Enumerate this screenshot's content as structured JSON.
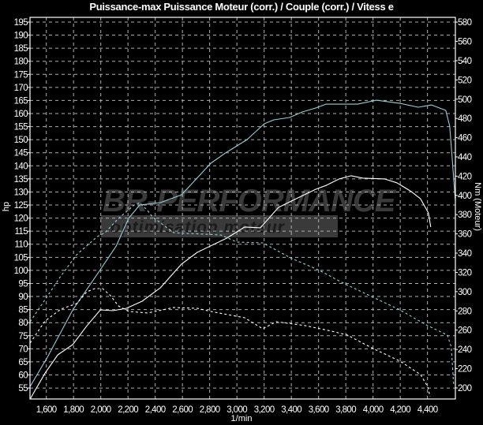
{
  "chart_data": {
    "type": "line",
    "title": "Puissance-max Puissance Moteur (corr.) / Couple (corr.) / Vitess e",
    "xlabel": "1/min",
    "ylabel_left": "hp",
    "ylabel_right": "Nm (Moteur)",
    "xlim": [
      1480,
      4605
    ],
    "ylim_left": [
      50.8,
      196.8
    ],
    "ylim_right": [
      188.5,
      585
    ],
    "grid": true,
    "x_ticks": [
      1600,
      1800,
      2000,
      2200,
      2400,
      2600,
      2800,
      3000,
      3200,
      3400,
      3600,
      3800,
      4000,
      4200,
      4400
    ],
    "x_tick_labels": [
      "1,600",
      "1,800",
      "2,000",
      "2,200",
      "2,400",
      "2,600",
      "2,800",
      "3,000",
      "3,200",
      "3,400",
      "3,600",
      "3,800",
      "4,000",
      "4,200",
      "4,400"
    ],
    "y_left_ticks": [
      55,
      60,
      65,
      70,
      75,
      80,
      85,
      90,
      95,
      100,
      105,
      110,
      115,
      120,
      125,
      130,
      135,
      140,
      145,
      150,
      155,
      160,
      165,
      170,
      175,
      180,
      185,
      190,
      195
    ],
    "y_right_ticks": [
      200,
      220,
      240,
      260,
      280,
      300,
      320,
      340,
      360,
      380,
      400,
      420,
      440,
      460,
      480,
      500,
      520,
      540,
      560,
      580
    ],
    "series": [
      {
        "axis": "left",
        "color": "#8fd3d8",
        "dash": false,
        "x": [
          1481,
          1608,
          1794,
          1997,
          2113,
          2205,
          2286,
          2437,
          2593,
          2808,
          2924,
          3074,
          3202,
          3271,
          3387,
          3480,
          3578,
          3654,
          3886,
          4025,
          4198,
          4332,
          4430,
          4534,
          4563,
          4581,
          4604
        ],
        "y": [
          55.6,
          66.8,
          84.9,
          100.3,
          109.3,
          119.9,
          125,
          125.9,
          128.9,
          141,
          145.2,
          150,
          156.1,
          157.6,
          158.5,
          160.6,
          162.1,
          163.6,
          163.6,
          165.1,
          163.9,
          162.4,
          163.3,
          161.2,
          155.2,
          143.1,
          127.1
        ]
      },
      {
        "axis": "left",
        "color": "#ffffff",
        "dash": false,
        "x": [
          1481,
          1591,
          1684,
          1794,
          1898,
          1997,
          2089,
          2188,
          2304,
          2437,
          2593,
          2709,
          2924,
          3057,
          3173,
          3306,
          3422,
          3578,
          3654,
          3752,
          3839,
          3926,
          4083,
          4175,
          4274,
          4349,
          4407,
          4424
        ],
        "y": [
          50.8,
          60.7,
          67.7,
          71.6,
          78.8,
          84.9,
          84.6,
          85.5,
          88.2,
          93.3,
          102.4,
          106.9,
          112.3,
          116.6,
          116.3,
          124.1,
          127.1,
          131,
          132.5,
          135,
          136.2,
          135.3,
          135,
          133.5,
          130.4,
          127.4,
          122,
          116.6
        ]
      },
      {
        "axis": "right",
        "color": "#8fd3d8",
        "dash": true,
        "x": [
          1481,
          1591,
          1707,
          1823,
          1974,
          2031,
          2130,
          2246,
          2286,
          2344,
          2379,
          2536,
          2883,
          2999,
          3190,
          3405,
          3596,
          3793,
          4001,
          4198,
          4390,
          4546,
          4575,
          4592
        ],
        "y": [
          268.8,
          291.7,
          316.3,
          338.4,
          357.2,
          361.3,
          376.1,
          390,
          392.4,
          384.3,
          377.7,
          361.3,
          358.9,
          351.5,
          350.7,
          334.3,
          322.8,
          308.1,
          294.2,
          281.1,
          265.5,
          254.9,
          242.6,
          204.1
        ]
      },
      {
        "axis": "right",
        "color": "#ffffff",
        "dash": true,
        "x": [
          1481,
          1591,
          1707,
          1823,
          1898,
          1956,
          2014,
          2072,
          2130,
          2205,
          2344,
          2536,
          2709,
          2808,
          3057,
          3190,
          3289,
          3503,
          3694,
          3810,
          4001,
          4198,
          4349,
          4401,
          4419
        ],
        "y": [
          246.7,
          269.6,
          281.9,
          287.6,
          299.9,
          303.2,
          303.2,
          295.8,
          285.2,
          279.4,
          277.8,
          283.5,
          282.7,
          279.4,
          272.9,
          261.4,
          268.8,
          264.7,
          259,
          254.9,
          240.9,
          227.8,
          213.9,
          201.6,
          191
        ]
      }
    ]
  },
  "watermark": {
    "line1": "BR-PERFORMANCE",
    "line2": "optimisation moteur"
  },
  "colors": {
    "background": "#000000",
    "grid": "#b0b0b0",
    "frame": "#ffffff"
  }
}
